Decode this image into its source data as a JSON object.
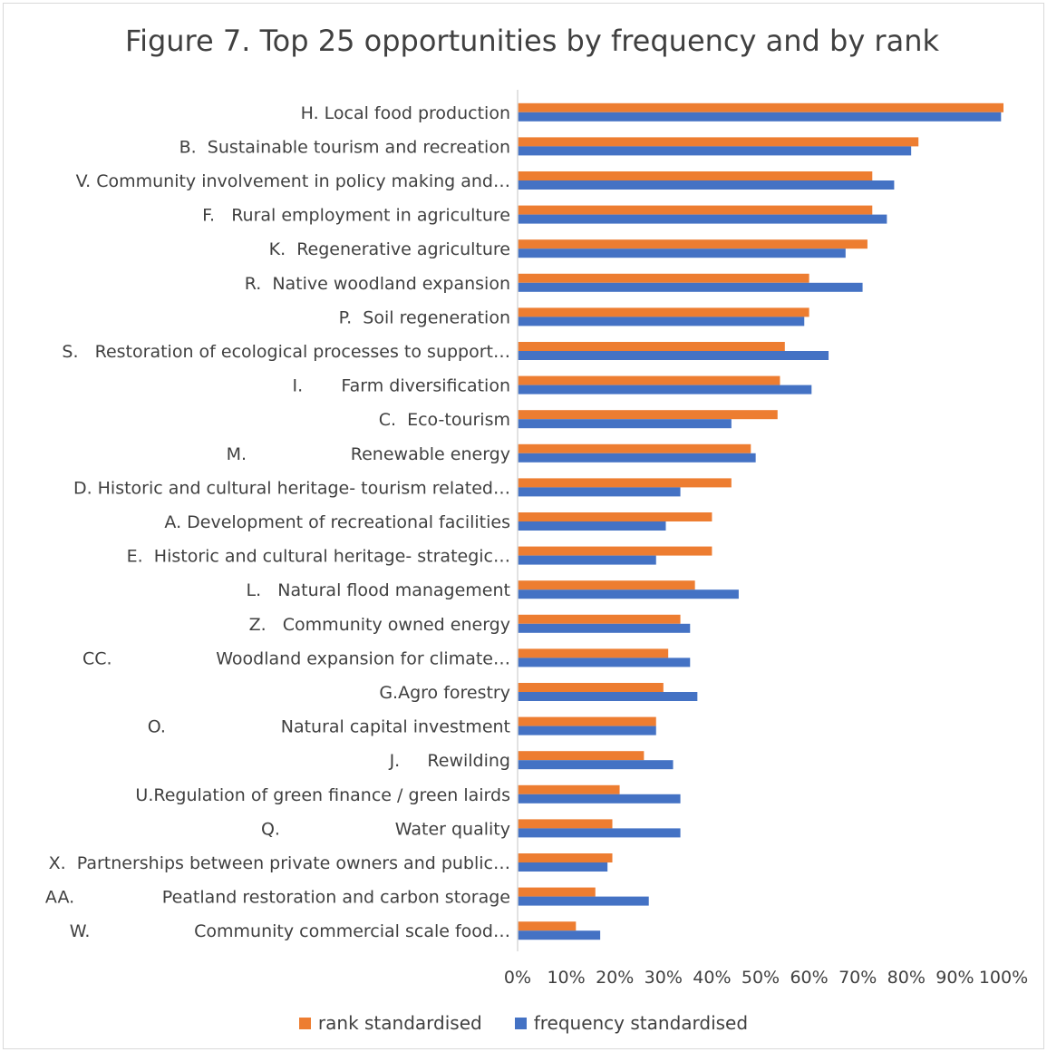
{
  "chart_data": {
    "type": "bar",
    "orientation": "horizontal",
    "title": "Figure 7. Top 25 opportunities by frequency and by rank",
    "categories": [
      "H. Local food production",
      "B.  Sustainable tourism and recreation",
      "V. Community involvement in policy making and…",
      "F.   Rural employment in agriculture",
      "K.  Regenerative agriculture",
      "R.  Native woodland expansion",
      "P.  Soil regeneration",
      "S.   Restoration of ecological processes to support…",
      "I.       Farm diversification",
      "C.  Eco-tourism",
      "M.                   Renewable energy",
      "D. Historic and cultural heritage- tourism related…",
      "A. Development of recreational facilities",
      "E.  Historic and cultural heritage- strategic…",
      "L.   Natural flood management",
      "Z.   Community owned energy",
      "CC.                   Woodland expansion for climate…",
      "G.Agro forestry",
      "O.                     Natural capital investment",
      "J.     Rewilding",
      "U.Regulation of green finance / green lairds",
      "Q.                     Water quality",
      "X.  Partnerships between private owners and public…",
      "AA.                Peatland restoration and carbon storage",
      "W.                   Community commercial scale food…"
    ],
    "series": [
      {
        "name": "rank standardised",
        "color": "#ED7D31",
        "values": [
          100,
          82.5,
          73,
          73,
          72,
          60,
          60,
          55,
          54,
          53.5,
          48,
          44,
          40,
          40,
          36.5,
          33.5,
          31,
          30,
          28.5,
          26,
          21,
          19.5,
          19.5,
          16,
          12
        ]
      },
      {
        "name": "frequency standardised",
        "color": "#4472C4",
        "values": [
          99.5,
          81,
          77.5,
          76,
          67.5,
          71,
          59,
          64,
          60.5,
          44,
          49,
          33.5,
          30.5,
          28.5,
          45.5,
          35.5,
          35.5,
          37,
          28.5,
          32,
          33.5,
          33.5,
          18.5,
          27,
          17
        ]
      }
    ],
    "xlim": [
      0,
      100
    ],
    "xticks": [
      "0%",
      "10%",
      "20%",
      "30%",
      "40%",
      "50%",
      "60%",
      "70%",
      "80%",
      "90%",
      "100%"
    ],
    "grid": false,
    "legend_position": "bottom"
  }
}
